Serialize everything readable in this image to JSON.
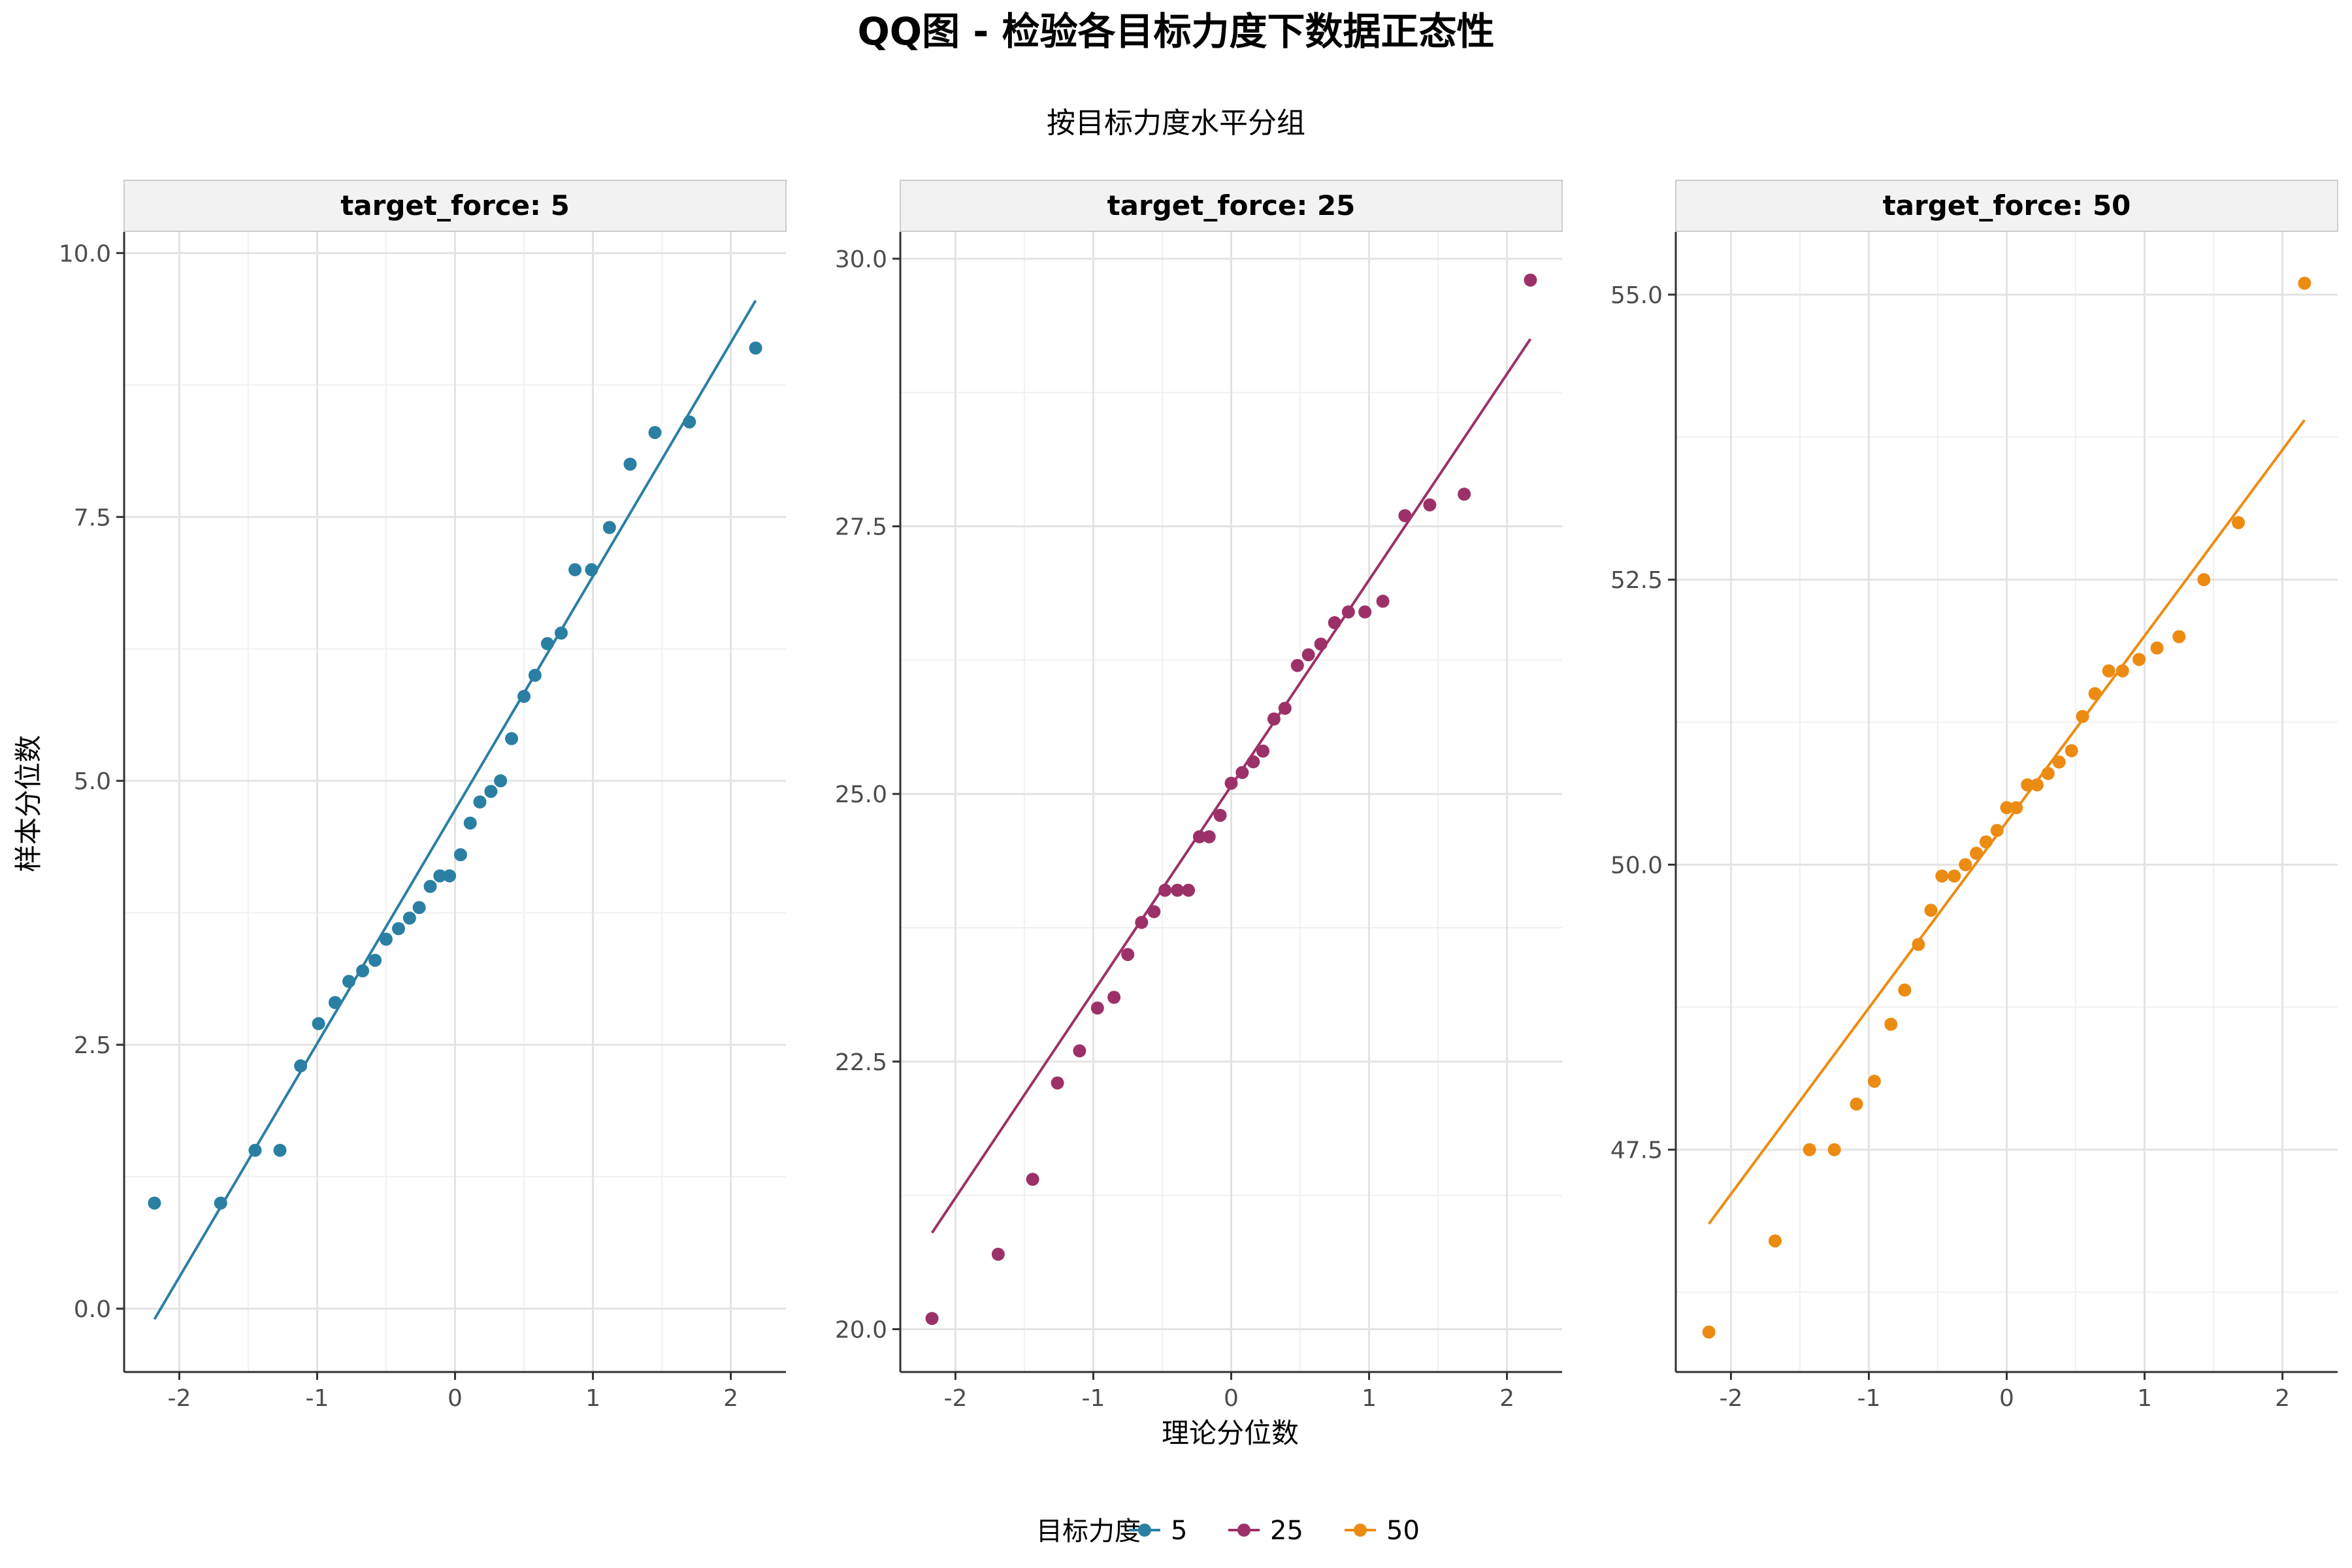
{
  "title": "QQ图 - 检验各目标力度下数据正态性",
  "subtitle": "按目标力度水平分组",
  "xlabel": "理论分位数",
  "ylabel": "样本分位数",
  "legend": {
    "title": "目标力度",
    "placement": "bottom",
    "items": [
      {
        "label": "5",
        "color": "#2A7FA3"
      },
      {
        "label": "25",
        "color": "#9C3168"
      },
      {
        "label": "50",
        "color": "#EC8B12"
      }
    ]
  },
  "chart_data": [
    {
      "type": "scatter",
      "panel": "target_force: 5",
      "color": "#2A7FA3",
      "xlim": [
        -2.4,
        2.4
      ],
      "ylim": [
        -0.6,
        10.2
      ],
      "xticks": [
        -2,
        -1,
        0,
        1,
        2
      ],
      "xtick_labels": [
        "-2",
        "-1",
        "0",
        "1",
        "2"
      ],
      "yticks": [
        0,
        2.5,
        5,
        7.5,
        10
      ],
      "ytick_labels": [
        "0.0",
        "2.5",
        "5.0",
        "7.5",
        "10.0"
      ],
      "x": [
        -2.18,
        -1.7,
        -1.45,
        -1.27,
        -1.12,
        -0.99,
        -0.87,
        -0.77,
        -0.67,
        -0.58,
        -0.5,
        -0.41,
        -0.33,
        -0.26,
        -0.18,
        -0.11,
        -0.04,
        0.04,
        0.11,
        0.18,
        0.26,
        0.33,
        0.41,
        0.5,
        0.58,
        0.67,
        0.77,
        0.87,
        0.99,
        1.12,
        1.27,
        1.45,
        1.7,
        2.18
      ],
      "y": [
        1.0,
        1.0,
        1.5,
        1.5,
        2.3,
        2.7,
        2.9,
        3.1,
        3.2,
        3.3,
        3.5,
        3.6,
        3.7,
        3.8,
        4.0,
        4.1,
        4.1,
        4.3,
        4.6,
        4.8,
        4.9,
        5.0,
        5.4,
        5.8,
        6.0,
        6.3,
        6.4,
        7.0,
        7.0,
        7.4,
        8.0,
        8.3,
        8.4,
        9.1
      ],
      "reference_line": {
        "x": [
          -2.18,
          2.18
        ],
        "y": [
          -0.1,
          9.55
        ]
      }
    },
    {
      "type": "scatter",
      "panel": "target_force: 25",
      "color": "#9C3168",
      "xlim": [
        -2.4,
        2.4
      ],
      "ylim": [
        19.6,
        30.25
      ],
      "xticks": [
        -2,
        -1,
        0,
        1,
        2
      ],
      "xtick_labels": [
        "-2",
        "-1",
        "0",
        "1",
        "2"
      ],
      "yticks": [
        20,
        22.5,
        25,
        27.5,
        30
      ],
      "ytick_labels": [
        "20.0",
        "22.5",
        "25.0",
        "27.5",
        "30.0"
      ],
      "x": [
        -2.17,
        -1.69,
        -1.44,
        -1.26,
        -1.1,
        -0.97,
        -0.85,
        -0.75,
        -0.65,
        -0.56,
        -0.48,
        -0.39,
        -0.31,
        -0.23,
        -0.16,
        -0.08,
        0.0,
        0.08,
        0.16,
        0.23,
        0.31,
        0.39,
        0.48,
        0.56,
        0.65,
        0.75,
        0.85,
        0.97,
        1.1,
        1.26,
        1.44,
        1.69,
        2.17
      ],
      "y": [
        20.1,
        20.7,
        21.4,
        22.3,
        22.6,
        23.0,
        23.1,
        23.5,
        23.8,
        23.9,
        24.1,
        24.1,
        24.1,
        24.6,
        24.6,
        24.8,
        25.1,
        25.2,
        25.3,
        25.4,
        25.7,
        25.8,
        26.2,
        26.3,
        26.4,
        26.6,
        26.7,
        26.7,
        26.8,
        27.6,
        27.7,
        27.8,
        29.8
      ],
      "reference_line": {
        "x": [
          -2.17,
          2.17
        ],
        "y": [
          20.9,
          29.25
        ]
      }
    },
    {
      "type": "scatter",
      "panel": "target_force: 50",
      "color": "#EC8B12",
      "xlim": [
        -2.4,
        2.4
      ],
      "ylim": [
        45.55,
        55.55
      ],
      "xticks": [
        -2,
        -1,
        0,
        1,
        2
      ],
      "xtick_labels": [
        "-2",
        "-1",
        "0",
        "1",
        "2"
      ],
      "yticks": [
        47.5,
        50,
        52.5,
        55
      ],
      "ytick_labels": [
        "47.5",
        "50.0",
        "52.5",
        "55.0"
      ],
      "x": [
        -2.16,
        -1.68,
        -1.43,
        -1.25,
        -1.09,
        -0.96,
        -0.84,
        -0.74,
        -0.64,
        -0.55,
        -0.47,
        -0.38,
        -0.3,
        -0.22,
        -0.15,
        -0.07,
        0.0,
        0.07,
        0.15,
        0.22,
        0.3,
        0.38,
        0.47,
        0.55,
        0.64,
        0.74,
        0.84,
        0.96,
        1.09,
        1.25,
        1.43,
        1.68,
        2.16
      ],
      "y": [
        45.9,
        46.7,
        47.5,
        47.5,
        47.9,
        48.1,
        48.6,
        48.9,
        49.3,
        49.6,
        49.9,
        49.9,
        50.0,
        50.1,
        50.2,
        50.3,
        50.5,
        50.5,
        50.7,
        50.7,
        50.8,
        50.9,
        51.0,
        51.3,
        51.5,
        51.7,
        51.7,
        51.8,
        51.9,
        52.0,
        52.5,
        53.0,
        55.1
      ],
      "reference_line": {
        "x": [
          -2.16,
          2.16
        ],
        "y": [
          46.85,
          53.9
        ]
      }
    }
  ]
}
